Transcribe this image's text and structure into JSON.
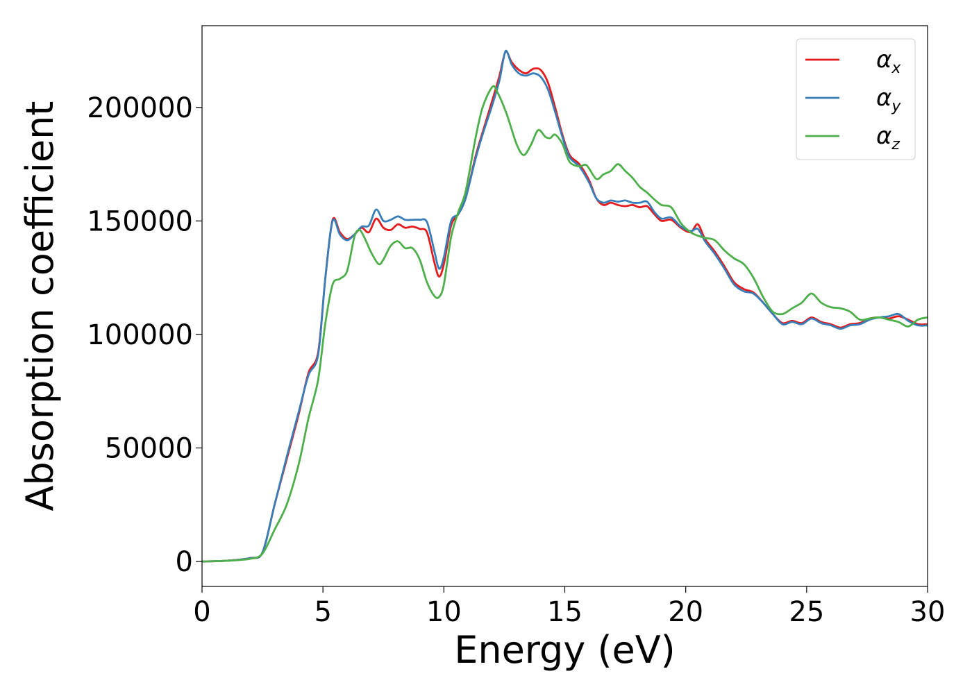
{
  "chart_data": {
    "type": "line",
    "xlabel": "Energy (eV)",
    "ylabel": "Absorption coefficient",
    "xlim": [
      0,
      30
    ],
    "ylim": [
      -11000,
      236000
    ],
    "x_ticks": [
      0,
      5,
      10,
      15,
      20,
      25,
      30
    ],
    "x_tick_labels": [
      "0",
      "5",
      "10",
      "15",
      "20",
      "25",
      "30"
    ],
    "y_ticks": [
      0,
      50000,
      100000,
      150000,
      200000
    ],
    "y_tick_labels": [
      "0",
      "50000",
      "100000",
      "150000",
      "200000"
    ],
    "grid": false,
    "legend_position": "top-right",
    "series": [
      {
        "name": "α_x",
        "legend_base": "α",
        "legend_sub": "x",
        "color": "#e41a1c",
        "points": [
          [
            0,
            0
          ],
          [
            1,
            300
          ],
          [
            2,
            1500
          ],
          [
            2.5,
            4000
          ],
          [
            3,
            25000
          ],
          [
            3.5,
            45000
          ],
          [
            4,
            65000
          ],
          [
            4.4,
            83000
          ],
          [
            4.8,
            92000
          ],
          [
            5.1,
            125000
          ],
          [
            5.4,
            150500
          ],
          [
            5.7,
            145000
          ],
          [
            6,
            142000
          ],
          [
            6.3,
            144000
          ],
          [
            6.6,
            147000
          ],
          [
            6.9,
            145000
          ],
          [
            7.2,
            151000
          ],
          [
            7.5,
            147000
          ],
          [
            7.8,
            146000
          ],
          [
            8.1,
            148500
          ],
          [
            8.4,
            147000
          ],
          [
            8.7,
            147500
          ],
          [
            9,
            146500
          ],
          [
            9.3,
            145000
          ],
          [
            9.6,
            132000
          ],
          [
            9.8,
            125500
          ],
          [
            10,
            131000
          ],
          [
            10.3,
            148000
          ],
          [
            10.6,
            153000
          ],
          [
            10.9,
            160000
          ],
          [
            11.3,
            178000
          ],
          [
            11.6,
            189000
          ],
          [
            12,
            203000
          ],
          [
            12.3,
            214000
          ],
          [
            12.55,
            224500
          ],
          [
            12.8,
            220000
          ],
          [
            13.1,
            216500
          ],
          [
            13.4,
            215000
          ],
          [
            13.7,
            217000
          ],
          [
            14,
            216500
          ],
          [
            14.3,
            211000
          ],
          [
            14.6,
            200000
          ],
          [
            14.9,
            188000
          ],
          [
            15.2,
            179000
          ],
          [
            15.6,
            175000
          ],
          [
            16,
            168000
          ],
          [
            16.3,
            160000
          ],
          [
            16.6,
            157000
          ],
          [
            16.9,
            158000
          ],
          [
            17.2,
            157000
          ],
          [
            17.5,
            156500
          ],
          [
            17.8,
            157000
          ],
          [
            18.1,
            156000
          ],
          [
            18.4,
            156500
          ],
          [
            18.7,
            153000
          ],
          [
            19,
            150000
          ],
          [
            19.4,
            150500
          ],
          [
            19.8,
            147000
          ],
          [
            20.2,
            145000
          ],
          [
            20.5,
            148500
          ],
          [
            20.8,
            142000
          ],
          [
            21.2,
            136500
          ],
          [
            21.6,
            130000
          ],
          [
            22,
            123000
          ],
          [
            22.4,
            120000
          ],
          [
            22.8,
            118500
          ],
          [
            23.2,
            114000
          ],
          [
            23.6,
            109000
          ],
          [
            24,
            105000
          ],
          [
            24.4,
            106000
          ],
          [
            24.8,
            105000
          ],
          [
            25.2,
            107500
          ],
          [
            25.6,
            105500
          ],
          [
            26,
            104500
          ],
          [
            26.4,
            103000
          ],
          [
            26.8,
            104500
          ],
          [
            27.2,
            105000
          ],
          [
            27.6,
            107000
          ],
          [
            28,
            107500
          ],
          [
            28.4,
            107000
          ],
          [
            28.8,
            108000
          ],
          [
            29.2,
            106500
          ],
          [
            29.6,
            104500
          ],
          [
            30,
            104500
          ]
        ]
      },
      {
        "name": "α_y",
        "legend_base": "α",
        "legend_sub": "y",
        "color": "#377eb8",
        "points": [
          [
            0,
            0
          ],
          [
            1,
            300
          ],
          [
            2,
            1500
          ],
          [
            2.5,
            4000
          ],
          [
            3,
            25000
          ],
          [
            3.5,
            46000
          ],
          [
            4,
            66000
          ],
          [
            4.4,
            82000
          ],
          [
            4.8,
            91000
          ],
          [
            5.1,
            125000
          ],
          [
            5.4,
            150000
          ],
          [
            5.7,
            144000
          ],
          [
            6,
            141500
          ],
          [
            6.3,
            144000
          ],
          [
            6.6,
            147500
          ],
          [
            6.9,
            148000
          ],
          [
            7.2,
            155000
          ],
          [
            7.5,
            150000
          ],
          [
            7.8,
            150500
          ],
          [
            8.1,
            152000
          ],
          [
            8.4,
            150500
          ],
          [
            8.7,
            150500
          ],
          [
            9,
            150500
          ],
          [
            9.3,
            149500
          ],
          [
            9.6,
            137000
          ],
          [
            9.8,
            129000
          ],
          [
            10,
            134000
          ],
          [
            10.3,
            150000
          ],
          [
            10.6,
            153000
          ],
          [
            10.9,
            160000
          ],
          [
            11.3,
            177000
          ],
          [
            11.6,
            188000
          ],
          [
            12,
            201000
          ],
          [
            12.3,
            212000
          ],
          [
            12.55,
            224800
          ],
          [
            12.8,
            219000
          ],
          [
            13.1,
            215000
          ],
          [
            13.4,
            214000
          ],
          [
            13.7,
            215000
          ],
          [
            14,
            213500
          ],
          [
            14.3,
            208000
          ],
          [
            14.6,
            198000
          ],
          [
            14.9,
            187000
          ],
          [
            15.2,
            178000
          ],
          [
            15.6,
            174000
          ],
          [
            16,
            167000
          ],
          [
            16.3,
            160000
          ],
          [
            16.6,
            158000
          ],
          [
            16.9,
            159000
          ],
          [
            17.2,
            158500
          ],
          [
            17.5,
            159000
          ],
          [
            17.8,
            158000
          ],
          [
            18.1,
            158000
          ],
          [
            18.4,
            158500
          ],
          [
            18.7,
            154000
          ],
          [
            19,
            151000
          ],
          [
            19.4,
            151500
          ],
          [
            19.8,
            147500
          ],
          [
            20.2,
            145500
          ],
          [
            20.5,
            146500
          ],
          [
            20.8,
            141000
          ],
          [
            21.2,
            135500
          ],
          [
            21.6,
            129000
          ],
          [
            22,
            122000
          ],
          [
            22.4,
            119000
          ],
          [
            22.8,
            118000
          ],
          [
            23.2,
            114000
          ],
          [
            23.6,
            109000
          ],
          [
            24,
            104500
          ],
          [
            24.4,
            105500
          ],
          [
            24.8,
            104500
          ],
          [
            25.2,
            107000
          ],
          [
            25.6,
            105000
          ],
          [
            26,
            104000
          ],
          [
            26.4,
            102500
          ],
          [
            26.8,
            104000
          ],
          [
            27.2,
            104500
          ],
          [
            27.6,
            106500
          ],
          [
            28,
            107500
          ],
          [
            28.4,
            108000
          ],
          [
            28.8,
            109000
          ],
          [
            29.2,
            106000
          ],
          [
            29.6,
            104000
          ],
          [
            30,
            104000
          ]
        ]
      },
      {
        "name": "α_z",
        "legend_base": "α",
        "legend_sub": "z",
        "color": "#4daf4a",
        "points": [
          [
            0,
            0
          ],
          [
            1,
            300
          ],
          [
            2,
            1200
          ],
          [
            2.5,
            3500
          ],
          [
            3,
            14000
          ],
          [
            3.5,
            25000
          ],
          [
            4,
            43000
          ],
          [
            4.4,
            63000
          ],
          [
            4.8,
            80000
          ],
          [
            5.1,
            105000
          ],
          [
            5.4,
            122000
          ],
          [
            5.7,
            124500
          ],
          [
            6,
            128000
          ],
          [
            6.3,
            143000
          ],
          [
            6.5,
            146000
          ],
          [
            6.7,
            143000
          ],
          [
            7,
            136000
          ],
          [
            7.3,
            131000
          ],
          [
            7.5,
            133000
          ],
          [
            7.8,
            139000
          ],
          [
            8.1,
            141000
          ],
          [
            8.4,
            138000
          ],
          [
            8.7,
            138000
          ],
          [
            9,
            133000
          ],
          [
            9.3,
            123000
          ],
          [
            9.6,
            117000
          ],
          [
            9.8,
            116500
          ],
          [
            10,
            122000
          ],
          [
            10.3,
            143000
          ],
          [
            10.6,
            154000
          ],
          [
            10.9,
            163000
          ],
          [
            11.3,
            186000
          ],
          [
            11.6,
            200000
          ],
          [
            12,
            209000
          ],
          [
            12.2,
            207000
          ],
          [
            12.6,
            197000
          ],
          [
            13,
            184000
          ],
          [
            13.3,
            179000
          ],
          [
            13.6,
            183500
          ],
          [
            13.9,
            190000
          ],
          [
            14.2,
            187000
          ],
          [
            14.4,
            186500
          ],
          [
            14.6,
            188000
          ],
          [
            14.9,
            184000
          ],
          [
            15.2,
            176000
          ],
          [
            15.6,
            174000
          ],
          [
            15.9,
            174500
          ],
          [
            16.3,
            168500
          ],
          [
            16.6,
            170500
          ],
          [
            16.9,
            172000
          ],
          [
            17.2,
            175000
          ],
          [
            17.5,
            172000
          ],
          [
            17.8,
            169000
          ],
          [
            18.1,
            165000
          ],
          [
            18.4,
            162500
          ],
          [
            18.7,
            159500
          ],
          [
            19,
            157000
          ],
          [
            19.4,
            156000
          ],
          [
            19.8,
            149000
          ],
          [
            20.2,
            145000
          ],
          [
            20.5,
            143500
          ],
          [
            20.8,
            142500
          ],
          [
            21.2,
            141500
          ],
          [
            21.6,
            137000
          ],
          [
            22,
            133500
          ],
          [
            22.4,
            131000
          ],
          [
            22.8,
            125000
          ],
          [
            23.2,
            116500
          ],
          [
            23.6,
            110000
          ],
          [
            24,
            109000
          ],
          [
            24.4,
            111500
          ],
          [
            24.8,
            114000
          ],
          [
            25.2,
            118000
          ],
          [
            25.6,
            114000
          ],
          [
            26,
            112000
          ],
          [
            26.4,
            111500
          ],
          [
            26.8,
            110000
          ],
          [
            27.2,
            106500
          ],
          [
            27.6,
            107000
          ],
          [
            28,
            107500
          ],
          [
            28.4,
            106500
          ],
          [
            28.8,
            105500
          ],
          [
            29.2,
            103500
          ],
          [
            29.6,
            106500
          ],
          [
            30,
            107500
          ]
        ]
      }
    ]
  }
}
